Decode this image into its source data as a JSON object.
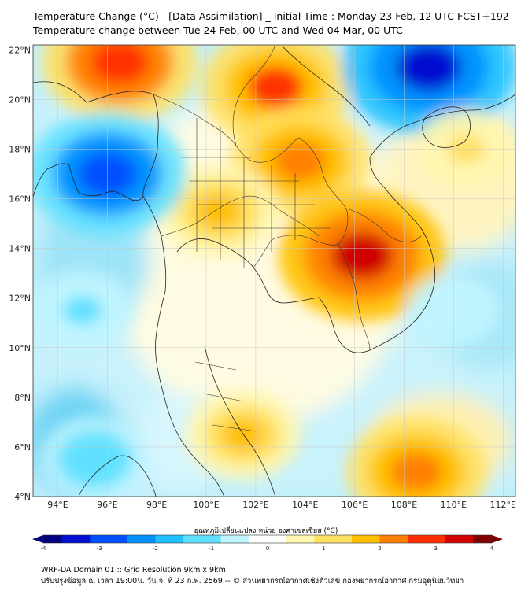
{
  "header": {
    "title_line1": "Temperature Change (°C) - [Data Assimilation] _ Initial Time : Monday 23 Feb, 12 UTC FCST+192",
    "title_line2": "Temperature change between Tue 24 Feb, 00 UTC and Wed 04 Mar, 00 UTC"
  },
  "map": {
    "lon_range": [
      93,
      112.5
    ],
    "lat_range": [
      4,
      22.2
    ],
    "lon_ticks": [
      "94°E",
      "96°E",
      "98°E",
      "100°E",
      "102°E",
      "104°E",
      "106°E",
      "108°E",
      "110°E",
      "112°E"
    ],
    "lat_ticks": [
      "22°N",
      "20°N",
      "18°N",
      "16°N",
      "14°N",
      "12°N",
      "10°N",
      "8°N",
      "6°N",
      "4°N"
    ],
    "anomalies": [
      {
        "name": "warm-northwest",
        "lon": 96.5,
        "lat": 21.5,
        "value": 2.8
      },
      {
        "name": "warm-north-laos",
        "lon": 102.8,
        "lat": 20.5,
        "value": 2.6
      },
      {
        "name": "warm-northeast-thailand",
        "lon": 103.8,
        "lat": 17.5,
        "value": 2.3
      },
      {
        "name": "warm-central-thailand",
        "lon": 100.5,
        "lat": 15.5,
        "value": 1.7
      },
      {
        "name": "warm-cambodia",
        "lon": 106.3,
        "lat": 13.7,
        "value": 3.2
      },
      {
        "name": "warm-malay",
        "lon": 101.5,
        "lat": 6.5,
        "value": 1.5
      },
      {
        "name": "warm-south-sea",
        "lon": 108.5,
        "lat": 5.0,
        "value": 2.3
      },
      {
        "name": "cold-gulf-of-tonkin",
        "lon": 109.0,
        "lat": 21.3,
        "value": -3.4
      },
      {
        "name": "cold-andaman",
        "lon": 96.0,
        "lat": 17.0,
        "value": -2.9
      },
      {
        "name": "cold-west",
        "lon": 95.0,
        "lat": 11.5,
        "value": -1.1
      },
      {
        "name": "cold-sw",
        "lon": 95.5,
        "lat": 5.5,
        "value": -1.3
      },
      {
        "name": "cold-east",
        "lon": 110.0,
        "lat": 11.5,
        "value": -0.7
      },
      {
        "name": "warm-hainan-area",
        "lon": 110.5,
        "lat": 18.0,
        "value": 1.0
      }
    ]
  },
  "colorbar": {
    "label": "อุณหภูมิเปลี่ยนแปลง หน่วย องศาเซลเซียส (°C)",
    "ticks": [
      "-4",
      "-3",
      "-2",
      "-1",
      "0",
      "1",
      "2",
      "3",
      "4"
    ],
    "colors": [
      "#00007f",
      "#0010d0",
      "#0050ff",
      "#0090ff",
      "#20c0ff",
      "#60e0ff",
      "#c0f4ff",
      "#ffffff",
      "#fff6b0",
      "#ffe060",
      "#ffc000",
      "#ff8000",
      "#ff3000",
      "#d00000",
      "#7f0000"
    ]
  },
  "footer": {
    "line1": "WRF-DA Domain 01 :: Grid Resolution 9km x 9km",
    "line2": "ปรับปรุงข้อมูล ณ เวลา 19:00น. วัน จ. ที่ 23 ก.พ. 2569 -- © ส่วนพยากรณ์อากาศเชิงตัวเลข กองพยากรณ์อากาศ กรมอุตุนิยมวิทยา"
  }
}
